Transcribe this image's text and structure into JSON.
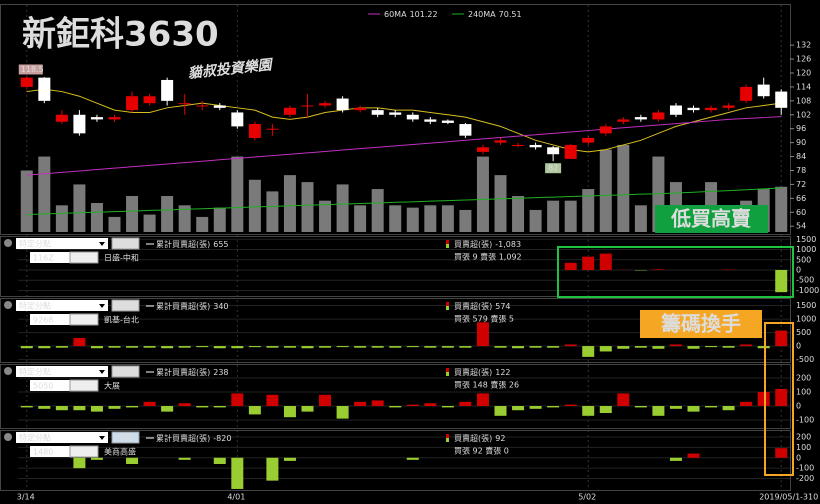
{
  "chart_data": [
    {
      "type": "candlestick",
      "title": "新鉅科3630",
      "logo": "貓叔投資樂園",
      "categories": [
        "3/14",
        null,
        null,
        null,
        null,
        null,
        null,
        null,
        null,
        null,
        null,
        null,
        "4/01",
        null,
        null,
        null,
        null,
        null,
        null,
        null,
        null,
        null,
        null,
        null,
        null,
        null,
        null,
        null,
        null,
        null,
        null,
        null,
        "5/02",
        null,
        null,
        null,
        null,
        null,
        null,
        null,
        null,
        null,
        null,
        "2019/05/1"
      ],
      "open": [
        114,
        118,
        99,
        102,
        101,
        100,
        104,
        107,
        117,
        107,
        106,
        106,
        103,
        92,
        96,
        102,
        106,
        106,
        109,
        104,
        104,
        103,
        102,
        100,
        99.5,
        98,
        86,
        90,
        89,
        89,
        88,
        83,
        90,
        94,
        99,
        101,
        100,
        106,
        105,
        104,
        105,
        108,
        115,
        112
      ],
      "close": [
        118,
        108,
        102,
        94,
        100,
        101,
        110,
        110,
        108,
        107,
        106,
        105,
        97,
        98,
        96,
        105,
        106,
        107,
        104,
        105,
        102,
        102,
        100,
        99,
        98.5,
        93,
        88,
        91,
        89,
        88,
        85,
        89,
        92,
        97,
        100,
        100,
        103,
        102,
        104,
        105,
        106,
        114,
        110,
        105
      ],
      "high": [
        118.5,
        118.2,
        104,
        104,
        102,
        102,
        112,
        111,
        118,
        111,
        108,
        107,
        104,
        99,
        98,
        106,
        111,
        108,
        110,
        106,
        105,
        104,
        103,
        101,
        100,
        98.5,
        89,
        92,
        90,
        90,
        88.5,
        89.5,
        93,
        98,
        101,
        102,
        104,
        107,
        106,
        106,
        107,
        115,
        118,
        113
      ],
      "low": [
        113,
        107,
        98,
        93,
        99,
        99,
        103,
        106,
        106,
        102,
        104,
        104,
        96,
        91,
        93,
        101,
        101,
        105,
        103,
        103,
        101,
        101,
        99,
        98,
        98,
        92,
        85,
        89,
        88,
        87,
        82,
        83,
        89,
        93,
        98,
        99,
        99,
        101,
        103,
        103,
        104,
        107,
        109,
        102
      ],
      "volume": [
        78,
        84,
        63,
        72,
        64,
        58,
        67,
        59,
        67,
        63,
        58,
        62,
        84,
        74,
        69,
        76,
        73,
        65,
        72,
        63,
        70,
        63,
        62,
        63,
        63,
        61,
        84,
        76,
        67,
        61,
        65,
        65,
        70,
        87,
        89,
        63,
        84,
        73,
        61,
        73,
        59,
        65,
        70,
        71
      ],
      "up_color": "#e60000",
      "down_color": "#ffffff",
      "volume_color": "#7a7a7a",
      "series": [
        {
          "color": "#d8c020",
          "values": [
            112,
            113,
            112,
            110,
            107,
            104,
            103,
            103,
            105,
            106,
            107,
            106,
            105,
            104,
            101,
            100,
            101,
            103,
            104,
            105,
            105,
            104,
            104,
            103,
            102,
            101,
            99,
            97,
            94,
            91,
            89,
            87,
            86,
            87,
            89,
            91,
            94,
            97,
            99,
            101,
            103,
            105,
            106,
            107
          ]
        },
        {
          "name": "60MA",
          "color": "#c030c0",
          "values": [
            76,
            76.6,
            77.2,
            77.8,
            78.4,
            79,
            79.6,
            80.2,
            80.8,
            81.4,
            82,
            82.6,
            83.2,
            83.8,
            84.4,
            85,
            85.6,
            86.2,
            86.8,
            87.4,
            88,
            88.6,
            89.2,
            89.8,
            90.4,
            91,
            91.6,
            92.2,
            92.8,
            93.4,
            94,
            94.6,
            95.2,
            95.8,
            96.4,
            97,
            97.6,
            98.2,
            98.8,
            99.4,
            100,
            100.4,
            100.8,
            101.22
          ]
        },
        {
          "name": "240MA",
          "color": "#20b020",
          "values": [
            59,
            59.3,
            59.5,
            59.8,
            60,
            60.3,
            60.5,
            60.8,
            61,
            61.3,
            61.5,
            61.8,
            62,
            62.3,
            62.5,
            62.8,
            63,
            63.3,
            63.5,
            63.8,
            64,
            64.3,
            64.5,
            64.8,
            65,
            65.3,
            65.5,
            65.8,
            66,
            66.3,
            66.5,
            66.8,
            67,
            67.3,
            67.5,
            67.8,
            68,
            68.3,
            68.6,
            69,
            69.3,
            69.7,
            70.1,
            70.51
          ]
        }
      ],
      "ylim": [
        51.5,
        148
      ],
      "yticks": [
        54,
        60,
        66,
        72,
        78,
        84,
        90,
        96,
        102,
        108,
        114,
        120,
        126,
        132
      ],
      "high_label": "118.5",
      "low_label": "82",
      "slogan": "低買高賣",
      "slogan2": "籌碼換手"
    },
    {
      "type": "bar",
      "up_color": "#d00000",
      "down_color": "#9acd32",
      "ylim": [
        -1270,
        1660
      ],
      "yticks": [
        1500,
        1000,
        500,
        0,
        -500,
        -1000
      ],
      "values": [
        0,
        0,
        0,
        0,
        0,
        0,
        0,
        0,
        0,
        0,
        0,
        0,
        0,
        0,
        0,
        0,
        0,
        0,
        0,
        0,
        0,
        0,
        0,
        0,
        0,
        0,
        0,
        0,
        0,
        0,
        0,
        350,
        650,
        800,
        10,
        -20,
        30,
        0,
        0,
        0,
        20,
        0,
        0,
        -1083
      ],
      "selector": "特定分點",
      "button": "追蹤",
      "cumulative_label": "累計買賣超(張)",
      "cumulative": 655,
      "broker_code": "116Z",
      "broker_name": "日盛-中和",
      "net_label": "買賣超(張)",
      "net": "-1,083",
      "buy_sell": "買張 9 賣張 1,092"
    },
    {
      "type": "bar",
      "up_color": "#d00000",
      "down_color": "#9acd32",
      "ylim": [
        -590,
        1780
      ],
      "yticks": [
        1500,
        1000,
        500,
        0,
        -500
      ],
      "values": [
        -80,
        -80,
        -60,
        300,
        -80,
        -60,
        -60,
        -60,
        -80,
        -60,
        -40,
        -80,
        -80,
        -40,
        -60,
        -60,
        -80,
        -60,
        -40,
        -60,
        -60,
        -60,
        -40,
        -60,
        -60,
        -60,
        880,
        -60,
        -80,
        -60,
        -60,
        60,
        -400,
        -200,
        -100,
        -60,
        -100,
        60,
        -100,
        -40,
        -60,
        60,
        -80,
        574
      ],
      "selector": "特定分點",
      "button": "追蹤",
      "cumulative_label": "累計買賣超(張)",
      "cumulative": 340,
      "broker_code": "9268",
      "broker_name": "凱基-台北",
      "net_label": "買賣超(張)",
      "net": "574",
      "buy_sell": "買張 579 賣張 5"
    },
    {
      "type": "bar",
      "up_color": "#d00000",
      "down_color": "#9acd32",
      "ylim": [
        -157,
        300
      ],
      "yticks": [
        200,
        100,
        0,
        -100
      ],
      "values": [
        -10,
        -20,
        -30,
        -30,
        -40,
        -20,
        -10,
        30,
        -40,
        20,
        -10,
        -10,
        90,
        -60,
        80,
        -80,
        -40,
        80,
        -90,
        30,
        40,
        -10,
        10,
        20,
        -10,
        30,
        90,
        -70,
        -30,
        -20,
        -10,
        10,
        -70,
        -50,
        90,
        -10,
        -70,
        -20,
        -40,
        -10,
        -30,
        30,
        100,
        122
      ],
      "selector": "特定分點",
      "button": "追蹤",
      "cumulative_label": "累計買賣超(張)",
      "cumulative": 238,
      "broker_code": "5050",
      "broker_name": "大展",
      "net_label": "買賣超(張)",
      "net": "122",
      "buy_sell": "買張 148 賣張 26"
    },
    {
      "type": "bar",
      "up_color": "#d00000",
      "down_color": "#9acd32",
      "ylim": [
        -310,
        267
      ],
      "yticks": [
        200,
        100,
        0,
        -100,
        -200
      ],
      "values": [
        0,
        0,
        0,
        -100,
        -20,
        0,
        -60,
        0,
        0,
        -20,
        0,
        -60,
        -300,
        0,
        -220,
        -30,
        0,
        0,
        0,
        0,
        0,
        0,
        -20,
        0,
        0,
        0,
        0,
        0,
        0,
        0,
        0,
        0,
        0,
        0,
        0,
        0,
        0,
        -30,
        40,
        0,
        0,
        0,
        0,
        92
      ],
      "selector": "特定分點",
      "button": "追蹤",
      "cumulative_label": "累計買賣超(張)",
      "cumulative": -820,
      "broker_code": "1480",
      "broker_name": "美商高盛",
      "net_label": "買賣超(張)",
      "net": "92",
      "buy_sell": "買張 92 賣張 0"
    }
  ]
}
